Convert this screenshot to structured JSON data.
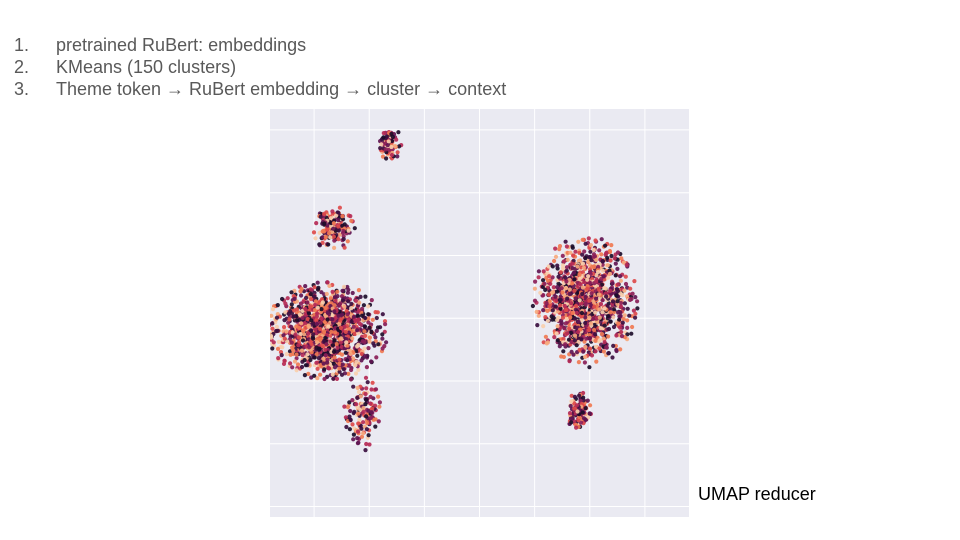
{
  "steps": [
    {
      "num": "1.",
      "text": "pretrained RuBert: embeddings"
    },
    {
      "num": "2.",
      "text": "KMeans (150 clusters)"
    },
    {
      "num": "3.",
      "text": "Theme token → RuBert embedding → cluster → context"
    }
  ],
  "caption": "UMAP reducer",
  "chart_data": {
    "type": "scatter",
    "title": "",
    "xlabel": "",
    "ylabel": "",
    "grid": true,
    "legend": "none",
    "tick_labels_visible": false,
    "xlim": [
      -4.5,
      14.5
    ],
    "ylim": [
      -3.5,
      16
    ],
    "background": "#eaeaf2",
    "gridline_color": "#ffffff",
    "colormap": "rocket",
    "palette": [
      "#1c0d2a",
      "#3b0f40",
      "#611552",
      "#8a1e58",
      "#b52a56",
      "#dd4a4b",
      "#f07a53",
      "#f6a97e",
      "#f8cfae"
    ],
    "point_count_note": "dense, approximated",
    "clusters": [
      {
        "name": "top",
        "center": [
          0.95,
          14.3
        ],
        "spread": [
          0.45,
          0.75
        ],
        "points": 90
      },
      {
        "name": "upper-left",
        "center": [
          -1.6,
          10.3
        ],
        "spread": [
          0.75,
          0.9
        ],
        "points": 160
      },
      {
        "name": "left-large",
        "center": [
          -1.9,
          5.4
        ],
        "spread": [
          2.2,
          1.9
        ],
        "points": 1300
      },
      {
        "name": "left-tail",
        "center": [
          -0.3,
          1.5
        ],
        "spread": [
          0.7,
          1.6
        ],
        "points": 140
      },
      {
        "name": "right-large",
        "center": [
          9.8,
          6.8
        ],
        "spread": [
          1.9,
          2.5
        ],
        "points": 1300
      },
      {
        "name": "right-tail",
        "center": [
          9.5,
          1.5
        ],
        "spread": [
          0.45,
          0.8
        ],
        "points": 120
      }
    ]
  }
}
